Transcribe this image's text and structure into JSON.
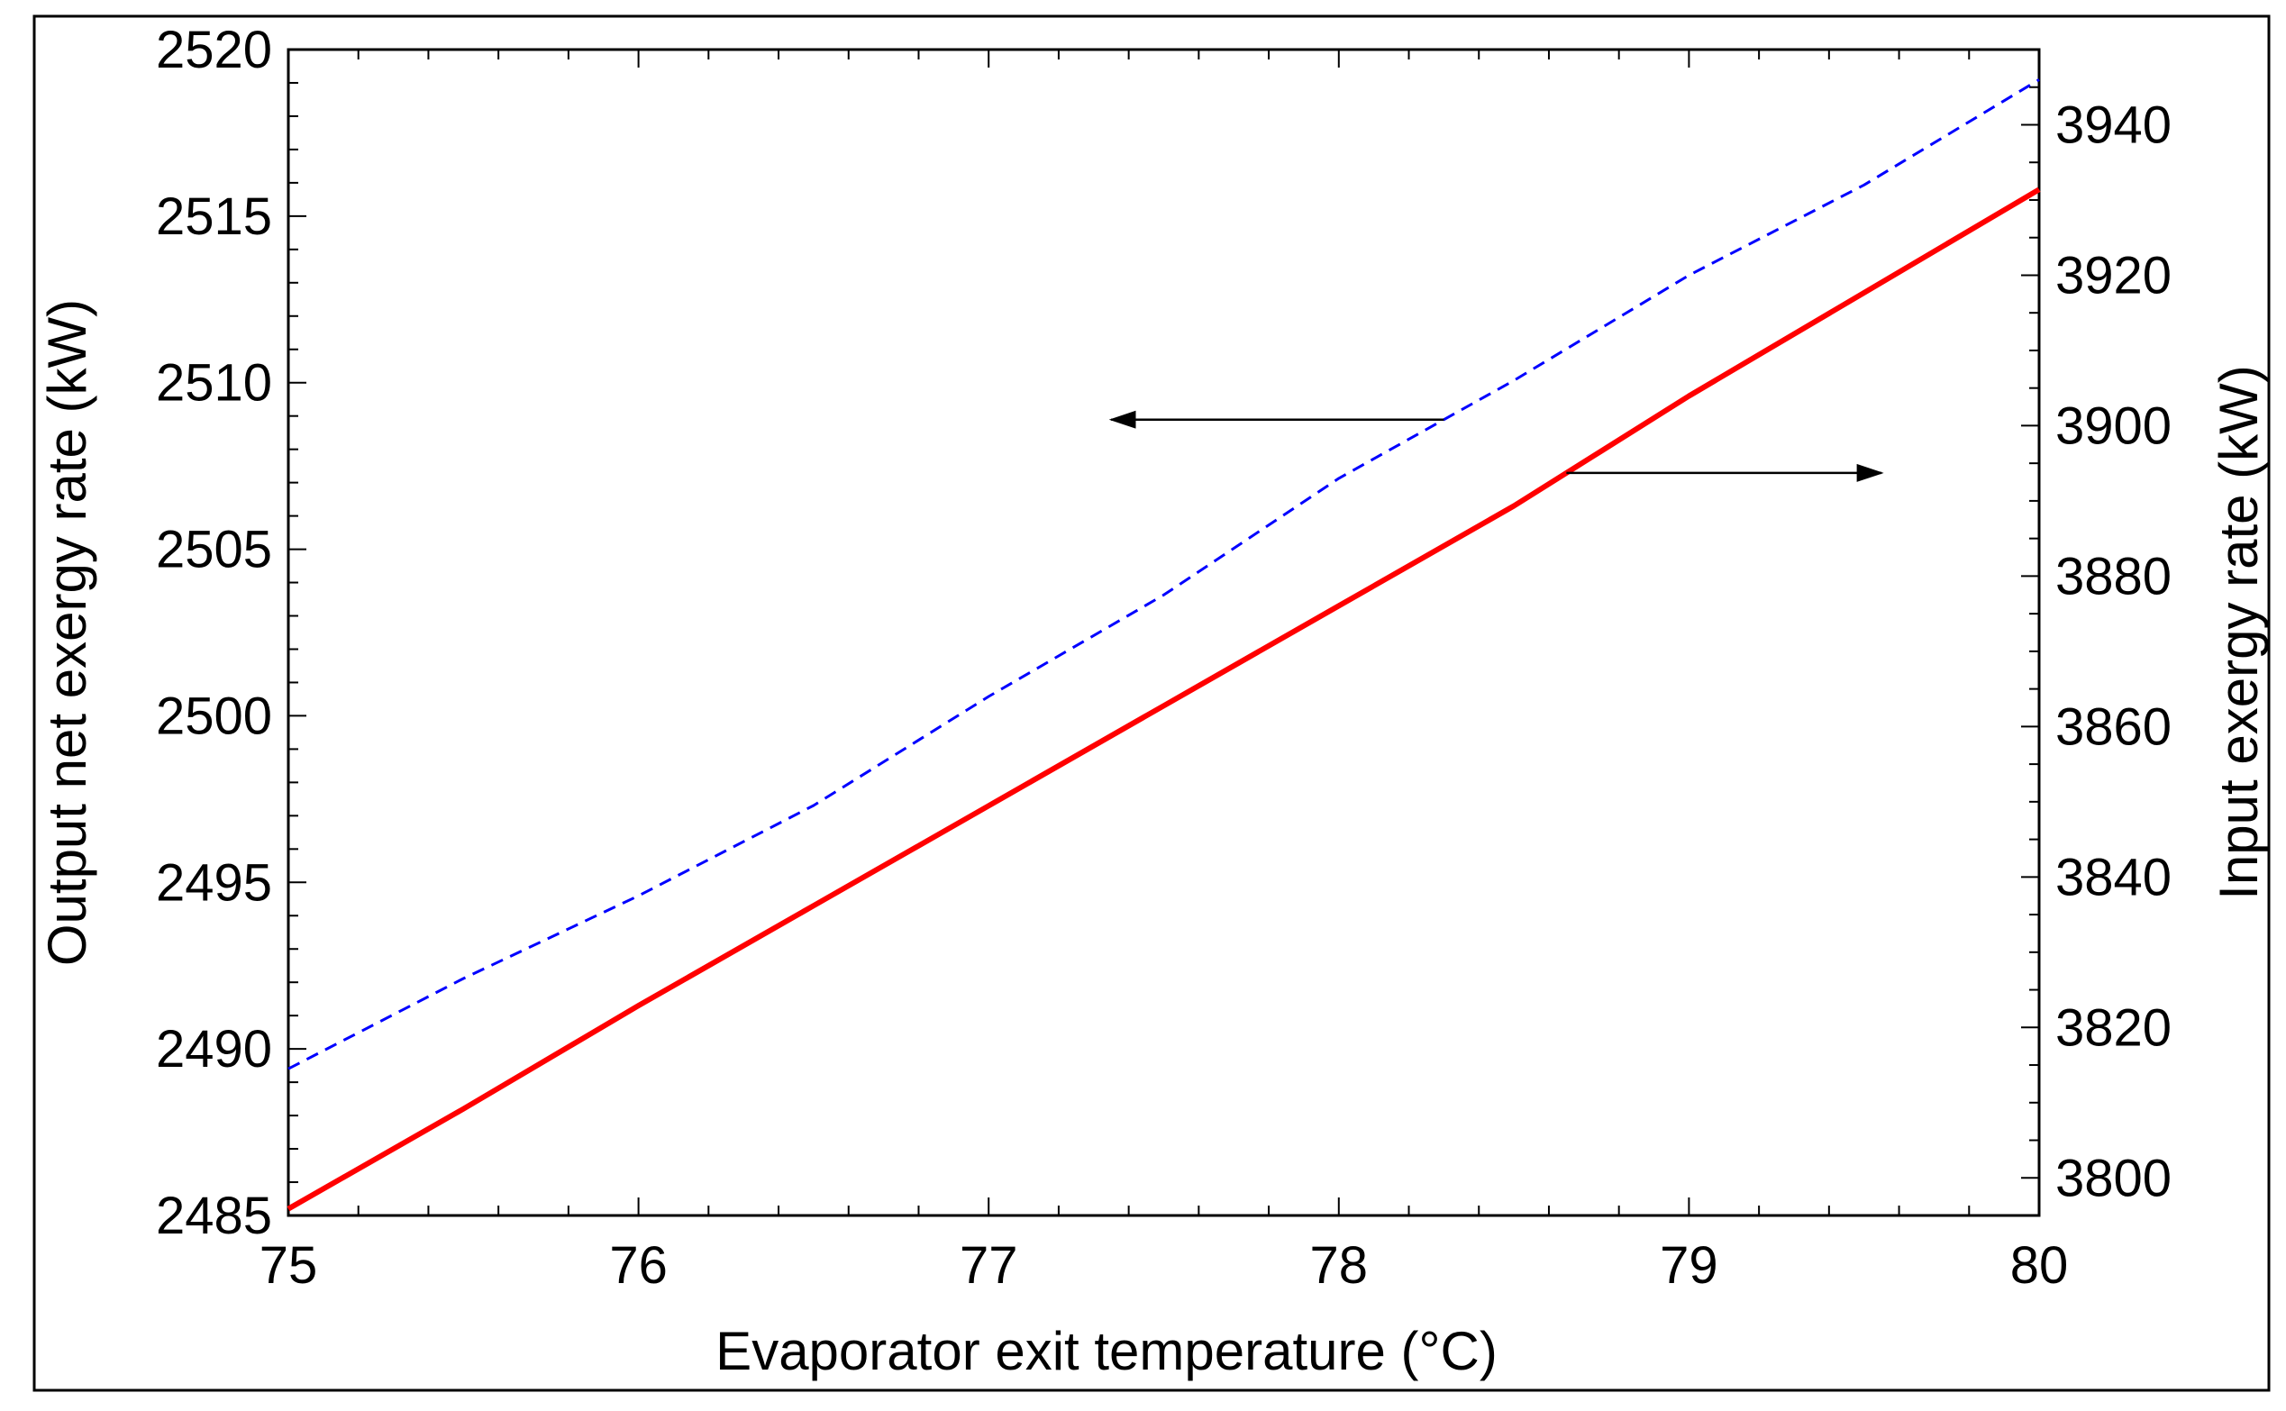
{
  "chart_data": {
    "type": "line",
    "title": "",
    "xlabel": "Evaporator exit temperature (°C)",
    "ylabel_left": "Output net exergy rate (kW)",
    "ylabel_right": "Input exergy rate (kW)",
    "xlim": [
      75,
      80
    ],
    "ylim_left": [
      2485,
      2520
    ],
    "ylim_right": [
      3795,
      3950
    ],
    "x_ticks": [
      "75",
      "76",
      "77",
      "78",
      "79",
      "80"
    ],
    "y_left_ticks": [
      "2485",
      "2490",
      "2495",
      "2500",
      "2505",
      "2510",
      "2515",
      "2520"
    ],
    "y_right_ticks": [
      "3800",
      "3820",
      "3840",
      "3860",
      "3880",
      "3900",
      "3920",
      "3940"
    ],
    "grid": false,
    "series": [
      {
        "name": "Output net exergy rate",
        "axis": "left",
        "style": "solid",
        "color": "#ff0000",
        "x": [
          75,
          75.5,
          76,
          76.5,
          77,
          77.5,
          78,
          78.5,
          79,
          79.5,
          80
        ],
        "values": [
          2485.2,
          2488.2,
          2491.3,
          2494.3,
          2497.3,
          2500.3,
          2503.3,
          2506.3,
          2509.6,
          2512.7,
          2515.8
        ]
      },
      {
        "name": "Input exergy rate",
        "axis": "right",
        "style": "dashed",
        "color": "#0000ff",
        "x": [
          75,
          75.5,
          76,
          76.5,
          77,
          77.5,
          78,
          78.5,
          79,
          79.5,
          80
        ],
        "values": [
          3814.5,
          3826.5,
          3837.5,
          3849.5,
          3864,
          3877.5,
          3893,
          3906,
          3920,
          3932,
          3946
        ]
      }
    ],
    "annotations": [
      {
        "type": "arrow",
        "direction": "left",
        "points_to": "left axis",
        "from_series": "Input exergy rate",
        "note": "arrow from dashed curve toward left axis"
      },
      {
        "type": "arrow",
        "direction": "right",
        "points_to": "right axis",
        "from_series": "Output net exergy rate",
        "note": "arrow from solid curve toward right axis"
      }
    ]
  }
}
